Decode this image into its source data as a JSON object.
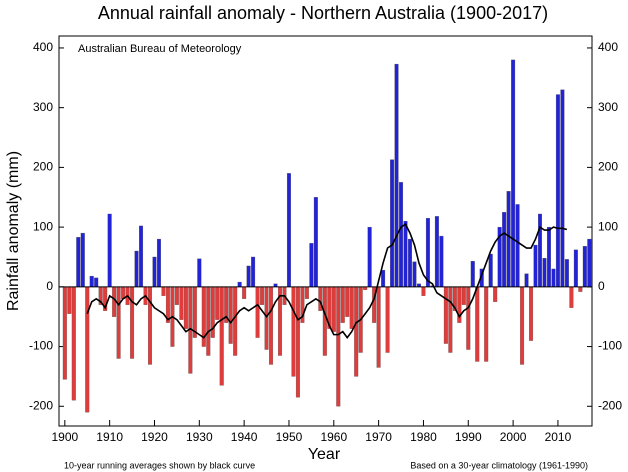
{
  "chart_data": {
    "type": "bar",
    "title": "Annual rainfall anomaly - Northern Australia (1900-2017)",
    "source": "Australian Bureau of Meteorology",
    "y_label": "Rainfall anomaly (mm)",
    "x_label": "Year",
    "note_left": "10-year running averages shown by black curve",
    "note_right": "Based on a 30-year climatology (1961-1990)",
    "x": [
      1900,
      1901,
      1902,
      1903,
      1904,
      1905,
      1906,
      1907,
      1908,
      1909,
      1910,
      1911,
      1912,
      1913,
      1914,
      1915,
      1916,
      1917,
      1918,
      1919,
      1920,
      1921,
      1922,
      1923,
      1924,
      1925,
      1926,
      1927,
      1928,
      1929,
      1930,
      1931,
      1932,
      1933,
      1934,
      1935,
      1936,
      1937,
      1938,
      1939,
      1940,
      1941,
      1942,
      1943,
      1944,
      1945,
      1946,
      1947,
      1948,
      1949,
      1950,
      1951,
      1952,
      1953,
      1954,
      1955,
      1956,
      1957,
      1958,
      1959,
      1960,
      1961,
      1962,
      1963,
      1964,
      1965,
      1966,
      1967,
      1968,
      1969,
      1970,
      1971,
      1972,
      1973,
      1974,
      1975,
      1976,
      1977,
      1978,
      1979,
      1980,
      1981,
      1982,
      1983,
      1984,
      1985,
      1986,
      1987,
      1988,
      1989,
      1990,
      1991,
      1992,
      1993,
      1994,
      1995,
      1996,
      1997,
      1998,
      1999,
      2000,
      2001,
      2002,
      2003,
      2004,
      2005,
      2006,
      2007,
      2008,
      2009,
      2010,
      2011,
      2012,
      2013,
      2014,
      2015,
      2016,
      2017
    ],
    "series": [
      {
        "type": "bar",
        "positive_color": "#2222d6",
        "negative_color": "#e03c3c",
        "values": [
          -155,
          -45,
          -190,
          83,
          90,
          -210,
          18,
          15,
          -30,
          -40,
          122,
          -50,
          -120,
          -20,
          -30,
          -120,
          60,
          102,
          -30,
          -130,
          50,
          80,
          -15,
          -60,
          -100,
          -30,
          -55,
          -70,
          -145,
          -85,
          47,
          -100,
          -115,
          -85,
          -55,
          -165,
          -60,
          -95,
          -115,
          8,
          -20,
          35,
          50,
          -85,
          -30,
          -105,
          -130,
          5,
          -115,
          -30,
          190,
          -150,
          -185,
          -60,
          -20,
          73,
          150,
          -40,
          -115,
          -70,
          -75,
          -200,
          -60,
          -50,
          -70,
          -150,
          -110,
          -5,
          100,
          -60,
          -135,
          28,
          -110,
          213,
          373,
          175,
          110,
          80,
          42,
          5,
          -15,
          115,
          2,
          118,
          85,
          -95,
          -110,
          -40,
          -60,
          -30,
          -105,
          43,
          -125,
          30,
          -125,
          55,
          -25,
          100,
          125,
          160,
          380,
          138,
          -130,
          22,
          -90,
          70,
          122,
          48,
          100,
          30,
          322,
          330,
          46,
          -35,
          62,
          -8,
          68,
          80
        ]
      },
      {
        "type": "line",
        "color": "#000000",
        "values": [
          null,
          null,
          null,
          null,
          null,
          -45,
          -25,
          -20,
          -25,
          -35,
          -15,
          -20,
          -30,
          -20,
          -15,
          -25,
          -30,
          -20,
          -15,
          -25,
          -35,
          -40,
          -45,
          -55,
          -50,
          -55,
          -65,
          -75,
          -70,
          -75,
          -80,
          -85,
          -75,
          -70,
          -60,
          -55,
          -50,
          -60,
          -50,
          -40,
          -35,
          -40,
          -35,
          -30,
          -40,
          -50,
          -40,
          -25,
          -15,
          -15,
          -25,
          -40,
          -55,
          -50,
          -30,
          -25,
          -20,
          -25,
          -45,
          -65,
          -80,
          -80,
          -75,
          -85,
          -75,
          -60,
          -55,
          -45,
          -35,
          -20,
          10,
          40,
          65,
          70,
          85,
          100,
          105,
          90,
          70,
          40,
          20,
          10,
          5,
          -10,
          -15,
          -20,
          -25,
          -35,
          -50,
          -40,
          -35,
          -20,
          0,
          20,
          40,
          60,
          75,
          85,
          90,
          85,
          80,
          75,
          70,
          65,
          65,
          80,
          100,
          95,
          95,
          100,
          98,
          98,
          96,
          null,
          null,
          null,
          null,
          null
        ]
      }
    ],
    "xlim": [
      1898.7,
      2017.6
    ],
    "ylim": [
      -233,
      420
    ],
    "xticks": [
      1900,
      1910,
      1920,
      1930,
      1940,
      1950,
      1960,
      1970,
      1980,
      1990,
      2000,
      2010
    ],
    "yticks": [
      -200,
      -100,
      0,
      100,
      200,
      300,
      400
    ]
  }
}
